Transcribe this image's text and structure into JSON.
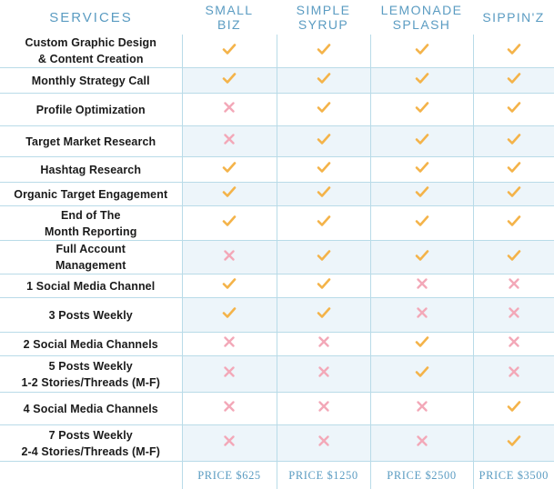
{
  "header": {
    "services_label": "SERVICES",
    "plans": [
      {
        "line1": "SMALL",
        "line2": "BIZ"
      },
      {
        "line1": "SIMPLE",
        "line2": "SYRUP"
      },
      {
        "line1": "LEMONADE",
        "line2": "SPLASH"
      },
      {
        "line1": "SIPPIN'Z",
        "line2": ""
      }
    ]
  },
  "colors": {
    "header_text": "#5b9cc2",
    "check": "#f4b349",
    "cross": "#f3a8b8",
    "row_shade": "#edf5fa",
    "grid_line": "#b9dbe8"
  },
  "icons": {
    "included": "check-icon",
    "excluded": "cross-icon"
  },
  "rows": [
    {
      "lines": [
        "Custom Graphic Design",
        "& Content Creation"
      ],
      "marks": [
        "check",
        "check",
        "check",
        "check"
      ]
    },
    {
      "lines": [
        "Monthly Strategy Call"
      ],
      "marks": [
        "check",
        "check",
        "check",
        "check"
      ]
    },
    {
      "lines": [
        "Profile Optimization"
      ],
      "marks": [
        "cross",
        "check",
        "check",
        "check"
      ]
    },
    {
      "lines": [
        "Target Market Research"
      ],
      "marks": [
        "cross",
        "check",
        "check",
        "check"
      ]
    },
    {
      "lines": [
        "Hashtag Research"
      ],
      "marks": [
        "check",
        "check",
        "check",
        "check"
      ]
    },
    {
      "lines": [
        "Organic Target Engagement"
      ],
      "marks": [
        "check",
        "check",
        "check",
        "check"
      ]
    },
    {
      "lines": [
        "End of The",
        "Month Reporting"
      ],
      "marks": [
        "check",
        "check",
        "check",
        "check"
      ]
    },
    {
      "lines": [
        "Full Account",
        "Management"
      ],
      "marks": [
        "cross",
        "check",
        "check",
        "check"
      ]
    },
    {
      "lines": [
        "1 Social Media Channel"
      ],
      "marks": [
        "check",
        "check",
        "cross",
        "cross"
      ]
    },
    {
      "lines": [
        "3 Posts Weekly"
      ],
      "marks": [
        "check",
        "check",
        "cross",
        "cross"
      ]
    },
    {
      "lines": [
        "2 Social Media Channels"
      ],
      "marks": [
        "cross",
        "cross",
        "check",
        "cross"
      ]
    },
    {
      "lines": [
        "5 Posts Weekly",
        "1-2 Stories/Threads (M-F)"
      ],
      "marks": [
        "cross",
        "cross",
        "check",
        "cross"
      ]
    },
    {
      "lines": [
        "4 Social Media Channels"
      ],
      "marks": [
        "cross",
        "cross",
        "cross",
        "check"
      ]
    },
    {
      "lines": [
        "7 Posts Weekly",
        "2-4 Stories/Threads (M-F)"
      ],
      "marks": [
        "cross",
        "cross",
        "cross",
        "check"
      ]
    }
  ],
  "prices": [
    "PRICE $625",
    "PRICE $1250",
    "PRICE $2500",
    "PRICE $3500"
  ]
}
